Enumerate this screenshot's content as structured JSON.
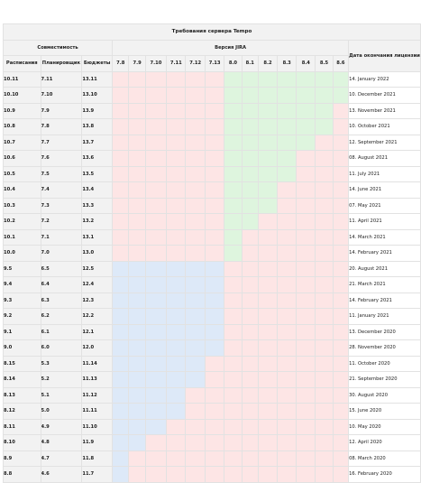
{
  "table": {
    "title": "Требования сервера Tempo",
    "compat_header": "Совместимость",
    "jira_header": "Версия JIRA",
    "date_header": "Дата окончания лицензии",
    "col_headers": [
      "Расписания",
      "Планировщик",
      "Бюджеты"
    ],
    "jira_versions": [
      "7.8",
      "7.9",
      "7.10",
      "7.11",
      "7.12",
      "7.13",
      "8.0",
      "8.1",
      "8.2",
      "8.3",
      "8.4",
      "8.5",
      "8.6"
    ],
    "rows": [
      {
        "s": "10.11",
        "p": "7.11",
        "b": "13.11",
        "date": "14. January 2022",
        "cells": "rrrrrrggggggg"
      },
      {
        "s": "10.10",
        "p": "7.10",
        "b": "13.10",
        "date": "10. December 2021",
        "cells": "rrrrrrggggggg"
      },
      {
        "s": "10.9",
        "p": "7.9",
        "b": "13.9",
        "date": "13. November 2021",
        "cells": "rrrrrrggggggr"
      },
      {
        "s": "10.8",
        "p": "7.8",
        "b": "13.8",
        "date": "10. October 2021",
        "cells": "rrrrrrggggggr"
      },
      {
        "s": "10.7",
        "p": "7.7",
        "b": "13.7",
        "date": "12. September 2021",
        "cells": "rrrrrrgggggrr"
      },
      {
        "s": "10.6",
        "p": "7.6",
        "b": "13.6",
        "date": "08. August 2021",
        "cells": "rrrrrrggggrrr"
      },
      {
        "s": "10.5",
        "p": "7.5",
        "b": "13.5",
        "date": "11. July 2021",
        "cells": "rrrrrrggggrrr"
      },
      {
        "s": "10.4",
        "p": "7.4",
        "b": "13.4",
        "date": "14. June 2021",
        "cells": "rrrrrrgggrrrr"
      },
      {
        "s": "10.3",
        "p": "7.3",
        "b": "13.3",
        "date": "07. May 2021",
        "cells": "rrrrrrgggrrrr"
      },
      {
        "s": "10.2",
        "p": "7.2",
        "b": "13.2",
        "date": "11. April 2021",
        "cells": "rrrrrrggrrrrr"
      },
      {
        "s": "10.1",
        "p": "7.1",
        "b": "13.1",
        "date": "14. March 2021",
        "cells": "rrrrrrgrrrrrr"
      },
      {
        "s": "10.0",
        "p": "7.0",
        "b": "13.0",
        "date": "14. February 2021",
        "cells": "rrrrrrgrrrrrr"
      },
      {
        "s": "9.5",
        "p": "6.5",
        "b": "12.5",
        "date": "20. August 2021",
        "cells": "bbbbbbrrrrrrr"
      },
      {
        "s": "9.4",
        "p": "6.4",
        "b": "12.4",
        "date": "21. March 2021",
        "cells": "bbbbbbrrrrrrr"
      },
      {
        "s": "9.3",
        "p": "6.3",
        "b": "12.3",
        "date": "14. February 2021",
        "cells": "bbbbbbrrrrrrr"
      },
      {
        "s": "9.2",
        "p": "6.2",
        "b": "12.2",
        "date": "11. January 2021",
        "cells": "bbbbbbrrrrrrr"
      },
      {
        "s": "9.1",
        "p": "6.1",
        "b": "12.1",
        "date": "13. December 2020",
        "cells": "bbbbbbrrrrrrr"
      },
      {
        "s": "9.0",
        "p": "6.0",
        "b": "12.0",
        "date": "28. November 2020",
        "cells": "bbbbbbrrrrrrr"
      },
      {
        "s": "8.15",
        "p": "5.3",
        "b": "11.14",
        "date": "11. October 2020",
        "cells": "bbbbbrrrrrrrr"
      },
      {
        "s": "8.14",
        "p": "5.2",
        "b": "11.13",
        "date": "21. September 2020",
        "cells": "bbbbbrrrrrrrr"
      },
      {
        "s": "8.13",
        "p": "5.1",
        "b": "11.12",
        "date": "30. August 2020",
        "cells": "bbbbrrrrrrrrr"
      },
      {
        "s": "8.12",
        "p": "5.0",
        "b": "11.11",
        "date": "15. June 2020",
        "cells": "bbbbrrrrrrrrr"
      },
      {
        "s": "8.11",
        "p": "4.9",
        "b": "11.10",
        "date": "10. May 2020",
        "cells": "bbbrrrrrrrrrr"
      },
      {
        "s": "8.10",
        "p": "4.8",
        "b": "11.9",
        "date": "12. April 2020",
        "cells": "bbrrrrrrrrrrr"
      },
      {
        "s": "8.9",
        "p": "4.7",
        "b": "11.8",
        "date": "08. March 2020",
        "cells": "brrrrrrrrrrrr"
      },
      {
        "s": "8.8",
        "p": "4.6",
        "b": "11.7",
        "date": "16. February 2020",
        "cells": "brrrrrrrrrrrr"
      }
    ]
  },
  "colors": {
    "incompatible": "#fde5e5",
    "compatible_jira8": "#def5de",
    "compatible_jira7": "#dde9f8",
    "header_bg": "#f2f2f2"
  }
}
